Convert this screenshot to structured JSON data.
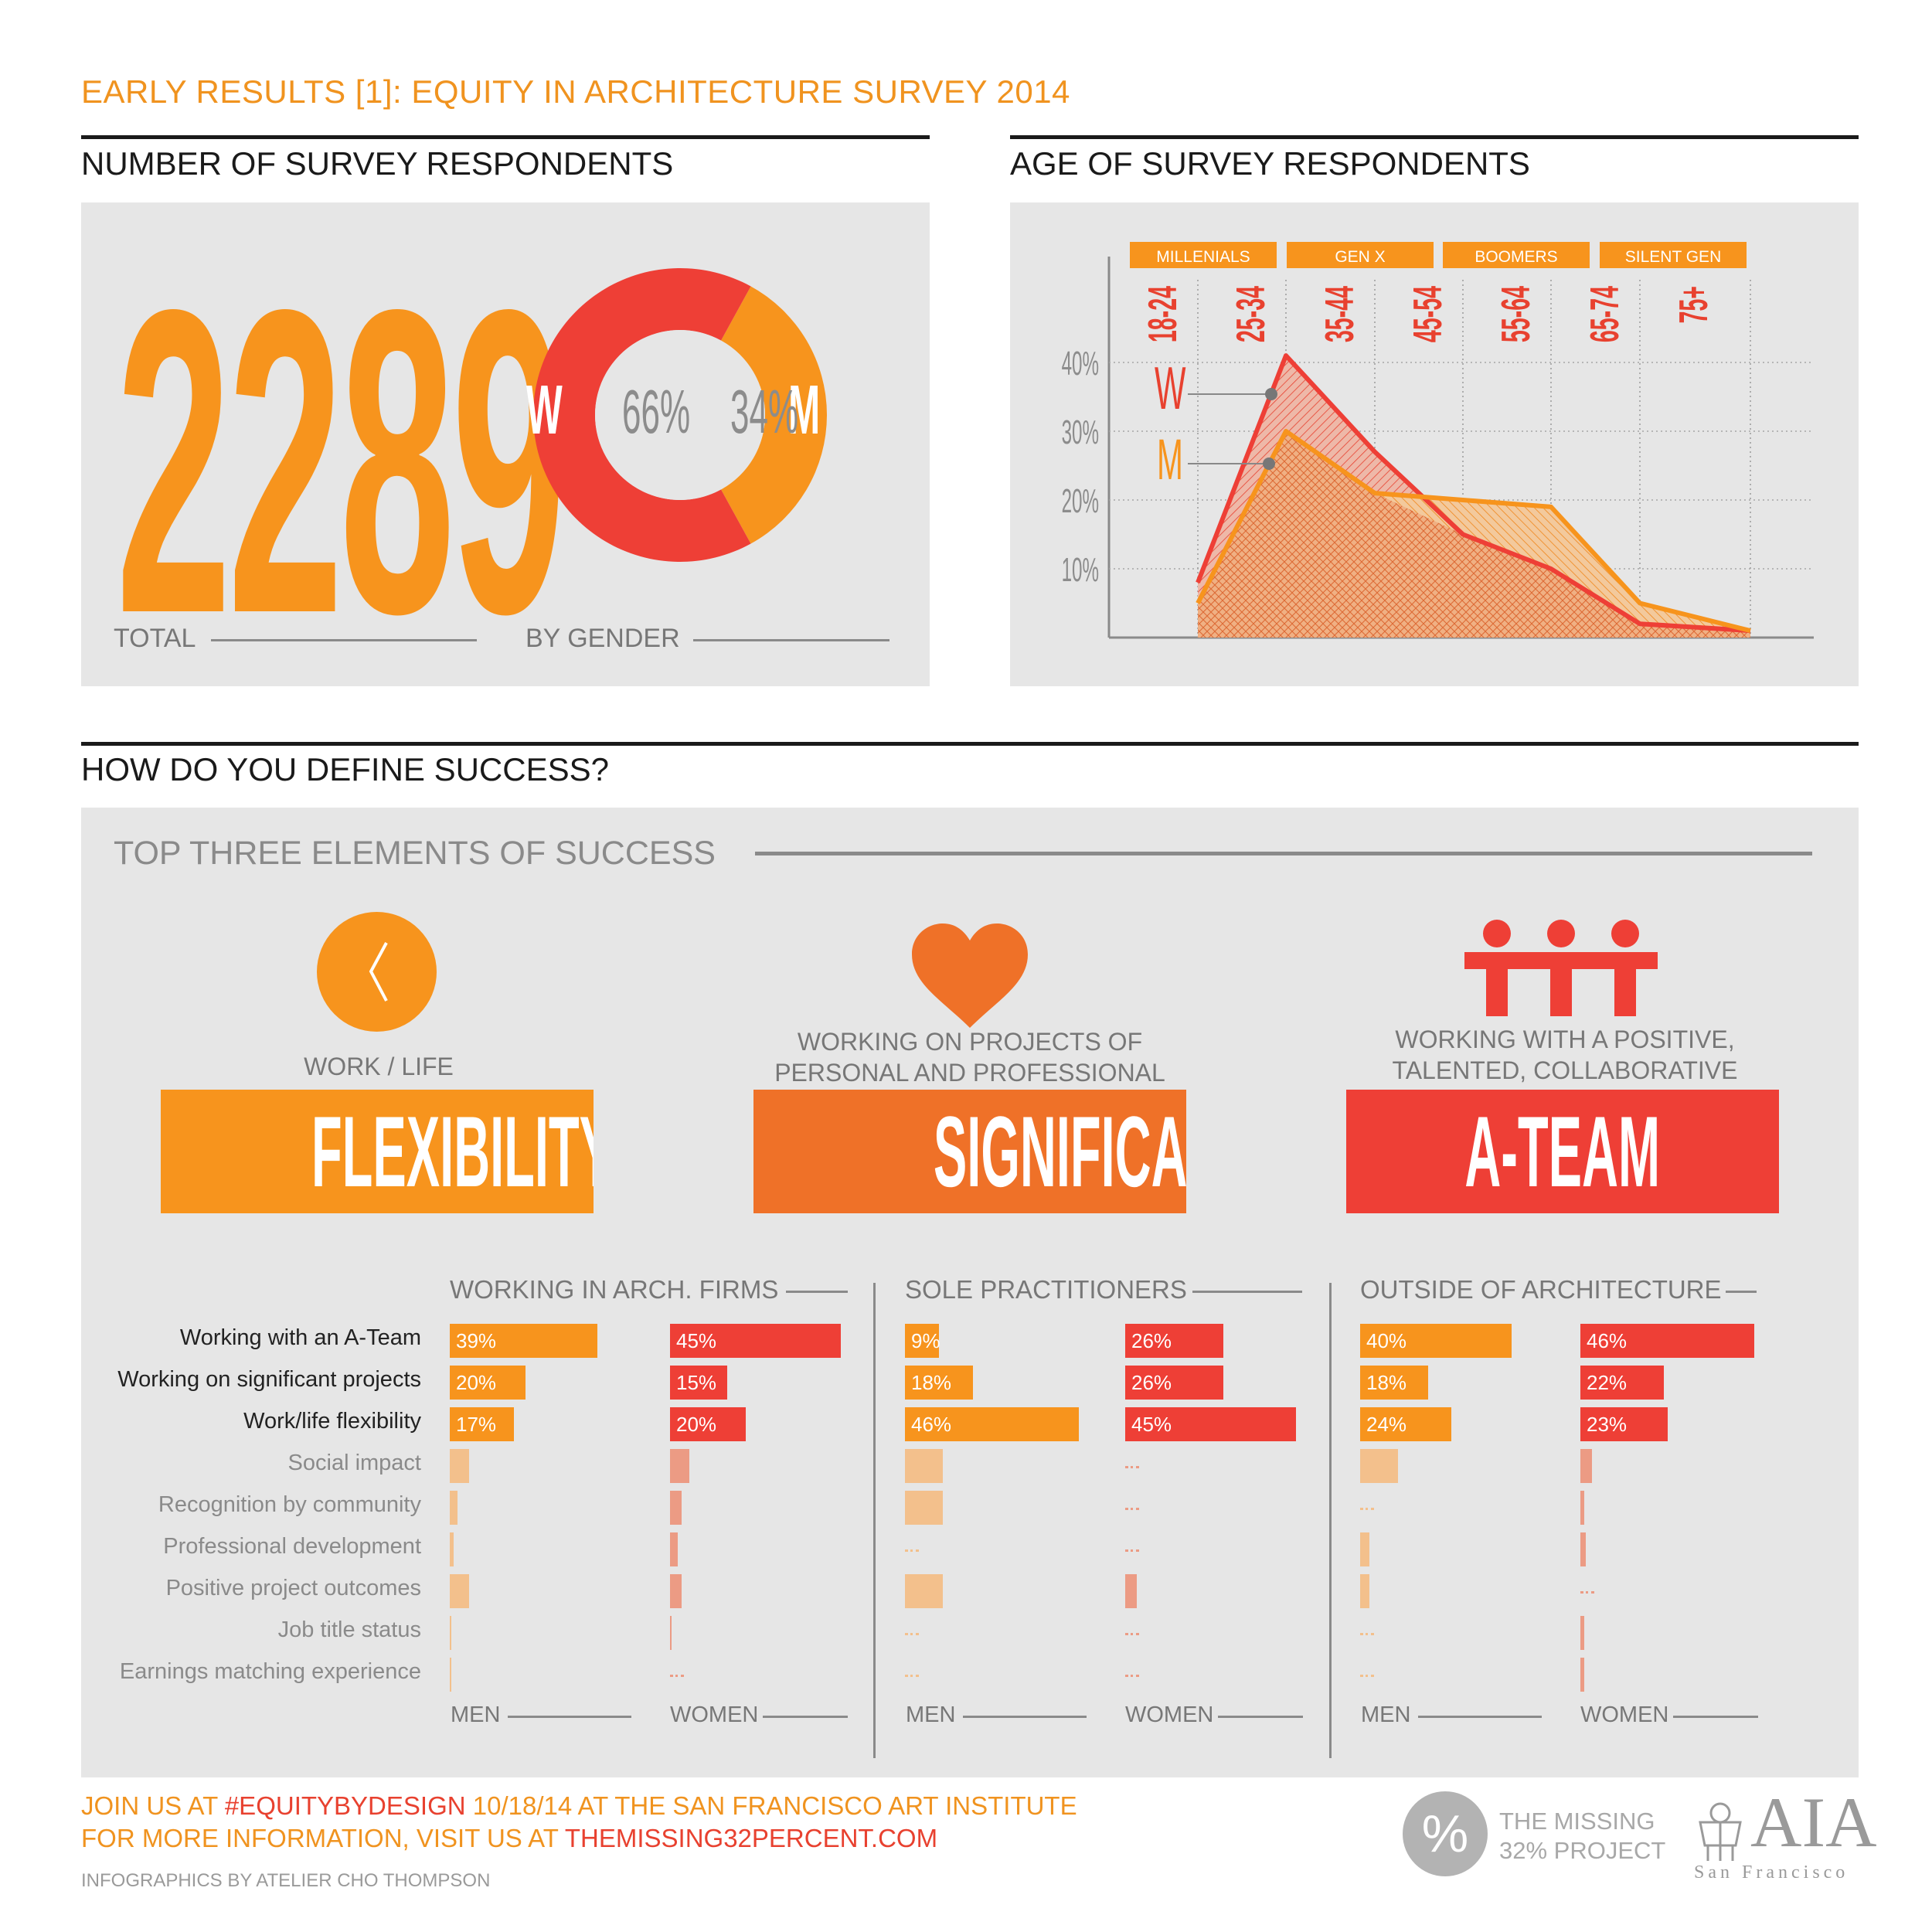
{
  "header": {
    "title": "EARLY RESULTS [1]: EQUITY IN ARCHITECTURE SURVEY 2014"
  },
  "respondents": {
    "section_title": "NUMBER OF SURVEY RESPONDENTS",
    "total": "2289",
    "total_label": "TOTAL",
    "gender_label": "BY GENDER",
    "women_letter": "W",
    "men_letter": "M",
    "women_pct": "66%",
    "men_pct": "34%"
  },
  "age": {
    "section_title": "AGE OF SURVEY RESPONDENTS",
    "generations": [
      "MILLENIALS",
      "GEN X",
      "BOOMERS",
      "SILENT GEN"
    ],
    "women_letter": "W",
    "men_letter": "M"
  },
  "success": {
    "section_title": "HOW DO YOU DEFINE SUCCESS?",
    "subtitle": "TOP THREE ELEMENTS OF SUCCESS",
    "elements": [
      {
        "caption": "WORK / LIFE",
        "label": "FLEXIBILITY",
        "color": "#f7941d"
      },
      {
        "caption": "WORKING ON PROJECTS OF\nPERSONAL AND PROFESSIONAL",
        "label": "SIGNIFICANCE",
        "color": "#ef7128"
      },
      {
        "caption": "WORKING WITH A POSITIVE,\nTALENTED, COLLABORATIVE",
        "label": "A-TEAM",
        "color": "#ee3f36"
      }
    ],
    "groups": [
      "WORKING IN ARCH. FIRMS",
      "SOLE PRACTITIONERS",
      "OUTSIDE OF ARCHITECTURE"
    ],
    "men_label": "MEN",
    "women_label": "WOMEN",
    "row_labels": [
      "Working with an A-Team",
      "Working on significant projects",
      "Work/life flexibility",
      "Social impact",
      "Recognition by community",
      "Professional development",
      "Positive project outcomes",
      "Job title status",
      "Earnings matching experience"
    ]
  },
  "colors": {
    "orange": "#f7941d",
    "red": "#ee3f36",
    "dark_orange": "#ef7128",
    "light_orange": "#f3c08c",
    "light_red": "#ec9b84",
    "panel_gray": "#e6e6e6"
  },
  "footer": {
    "line1_a": "JOIN US AT ",
    "line1_b": "#EQUITYBYDESIGN",
    "line1_c": " 10/18/14 AT THE SAN FRANCISCO ART INSTITUTE",
    "line2_a": "FOR MORE INFORMATION, VISIT US AT ",
    "line2_b": "THEMISSING32PERCENT.COM",
    "credit": "INFOGRAPHICS BY ATELIER CHO THOMPSON",
    "logo_pct": "%",
    "logo_text1": "THE MISSING",
    "logo_text2": "32% PROJECT",
    "aia": "AIA",
    "aia_sub": "San Francisco"
  },
  "chart_data": [
    {
      "type": "pie",
      "labels": [
        "W",
        "M"
      ],
      "values": [
        66,
        34
      ],
      "colors": [
        "#ee3f36",
        "#f7941d"
      ]
    },
    {
      "type": "area",
      "categories": [
        "18-24",
        "25-34",
        "35-44",
        "45-54",
        "55-64",
        "65-74",
        "75+"
      ],
      "series": [
        {
          "name": "W",
          "values": [
            8,
            41,
            27,
            15,
            10,
            2,
            1
          ],
          "color": "#ee3f36"
        },
        {
          "name": "M",
          "values": [
            5,
            30,
            21,
            20,
            19,
            5,
            1
          ],
          "color": "#f7941d"
        }
      ],
      "y_ticks": [
        "10%",
        "20%",
        "30%",
        "40%"
      ],
      "ylim": [
        0,
        40
      ],
      "grid": true
    },
    {
      "type": "bar",
      "group": "WORKING IN ARCH. FIRMS",
      "series": [
        {
          "name": "MEN",
          "values": [
            39,
            20,
            17,
            5,
            2,
            1,
            5,
            0.5,
            0.2
          ],
          "labels": [
            "39%",
            "20%",
            "17%"
          ]
        },
        {
          "name": "WOMEN",
          "values": [
            45,
            15,
            20,
            5,
            3,
            2,
            3,
            0.5,
            0
          ],
          "labels": [
            "45%",
            "15%",
            "20%"
          ]
        }
      ]
    },
    {
      "type": "bar",
      "group": "SOLE PRACTITIONERS",
      "series": [
        {
          "name": "MEN",
          "values": [
            9,
            18,
            46,
            10,
            10,
            0,
            10,
            0,
            0
          ],
          "labels": [
            "9%",
            "18%",
            "46%"
          ]
        },
        {
          "name": "WOMEN",
          "values": [
            26,
            26,
            45,
            0,
            0,
            0,
            3,
            0,
            0
          ],
          "labels": [
            "26%",
            "26%",
            "45%"
          ]
        }
      ]
    },
    {
      "type": "bar",
      "group": "OUTSIDE OF ARCHITECTURE",
      "series": [
        {
          "name": "MEN",
          "values": [
            40,
            18,
            24,
            10,
            0,
            2.5,
            2.5,
            0,
            0
          ],
          "labels": [
            "40%",
            "18%",
            "24%"
          ]
        },
        {
          "name": "WOMEN",
          "values": [
            46,
            22,
            23,
            3,
            1,
            1.5,
            0,
            1,
            1
          ],
          "labels": [
            "46%",
            "22%",
            "23%"
          ]
        }
      ]
    }
  ]
}
